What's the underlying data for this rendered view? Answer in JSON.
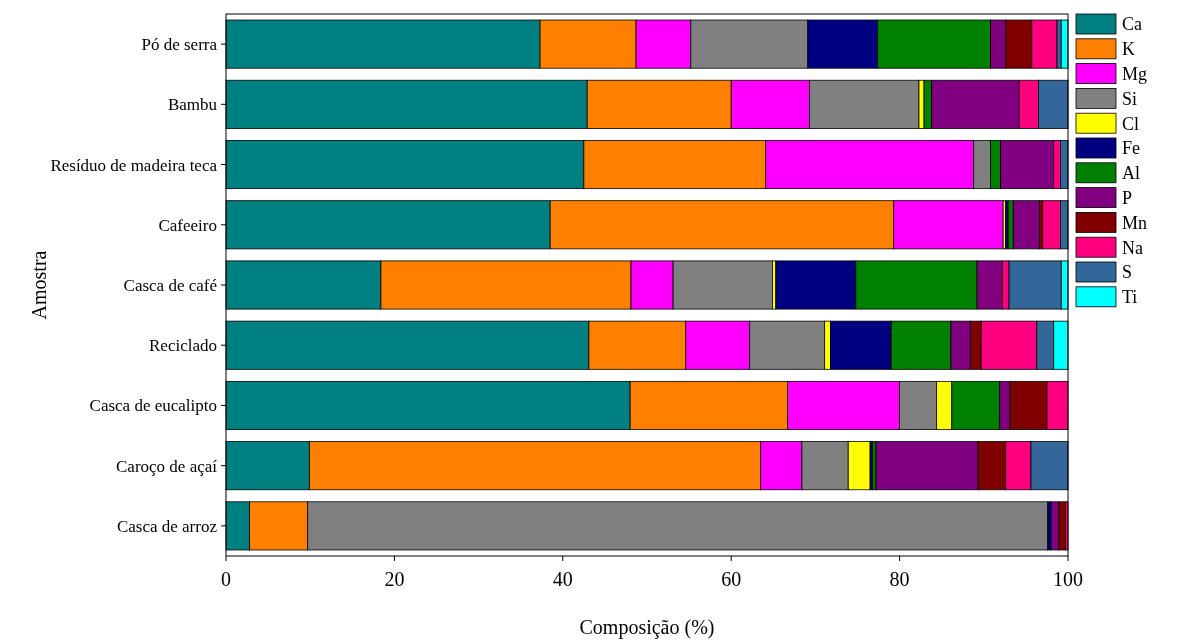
{
  "chart_data": {
    "type": "bar",
    "orientation": "horizontal",
    "stacked": true,
    "xlabel": "Composição (%)",
    "ylabel": "Amostra",
    "categories": [
      "Pó de serra",
      "Bambu",
      "Resíduo de madeira teca",
      "Cafeeiro",
      "Casca de café",
      "Reciclado",
      "Casca de eucalipto",
      "Caroço de açaí",
      "Casca de arroz"
    ],
    "series": [
      {
        "name": "Ca",
        "color": "#008080",
        "values": [
          37.3,
          42.9,
          42.5,
          38.5,
          18.4,
          43.1,
          48.0,
          9.9,
          2.8
        ]
      },
      {
        "name": "K",
        "color": "#ff8000",
        "values": [
          11.4,
          17.1,
          21.6,
          40.8,
          29.7,
          11.5,
          18.7,
          53.6,
          6.9
        ]
      },
      {
        "name": "Mg",
        "color": "#ff00ff",
        "values": [
          6.5,
          9.3,
          24.7,
          13.0,
          5.0,
          7.6,
          13.3,
          4.9,
          0
        ]
      },
      {
        "name": "Si",
        "color": "#808080",
        "values": [
          13.9,
          13.0,
          2.0,
          0,
          11.8,
          8.9,
          4.4,
          5.5,
          87.9
        ]
      },
      {
        "name": "Cl",
        "color": "#ffff00",
        "values": [
          0,
          0.6,
          0,
          0.3,
          0.4,
          0.7,
          1.8,
          2.6,
          0
        ]
      },
      {
        "name": "Fe",
        "color": "#000080",
        "values": [
          8.3,
          0,
          0,
          0.3,
          9.5,
          7.2,
          0,
          0.3,
          0.4
        ]
      },
      {
        "name": "Al",
        "color": "#008000",
        "values": [
          13.4,
          0.9,
          1.2,
          0.6,
          14.4,
          7.1,
          5.7,
          0.4,
          0
        ]
      },
      {
        "name": "P",
        "color": "#800080",
        "values": [
          1.8,
          10.4,
          6.3,
          3.1,
          3.0,
          2.3,
          1.2,
          12.1,
          0.9
        ]
      },
      {
        "name": "Mn",
        "color": "#800000",
        "values": [
          3.1,
          0,
          0,
          0.4,
          0,
          1.3,
          4.4,
          3.3,
          0.8
        ]
      },
      {
        "name": "Na",
        "color": "#ff0080",
        "values": [
          3.0,
          2.3,
          0.8,
          2.1,
          0.8,
          6.6,
          2.5,
          3.0,
          0.3
        ]
      },
      {
        "name": "S",
        "color": "#336699",
        "values": [
          0.5,
          3.5,
          0.9,
          0.9,
          6.2,
          2.0,
          0,
          4.4,
          0
        ]
      },
      {
        "name": "Ti",
        "color": "#00ffff",
        "values": [
          0.8,
          0,
          0,
          0,
          0.8,
          1.7,
          0,
          0,
          0
        ]
      }
    ],
    "xlim": [
      0,
      100
    ],
    "xticks": [
      0,
      20,
      40,
      60,
      80,
      100
    ],
    "grid": false,
    "legend": "top right"
  }
}
